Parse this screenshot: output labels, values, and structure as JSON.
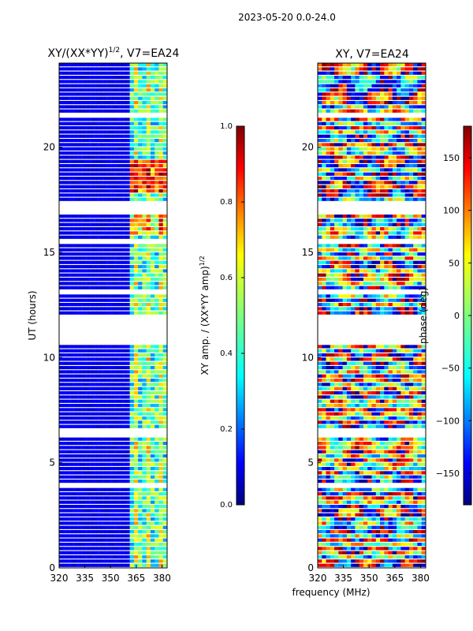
{
  "suptitle": "2023-05-20 0.0-24.0",
  "shared": {
    "xlabel": "frequency (MHz)"
  },
  "chart_data": [
    {
      "type": "heatmap",
      "title_main": "XY/(XX*YY)",
      "title_sup": "1/2",
      "title_tail": ", V7=EA24",
      "xlabel": "frequency (MHz)",
      "ylabel": "UT (hours)",
      "xlim": [
        320,
        383
      ],
      "ylim": [
        0,
        24
      ],
      "xticks": [
        320,
        335,
        350,
        365,
        380
      ],
      "yticks": [
        0,
        5,
        10,
        15,
        20
      ],
      "colorbar": {
        "label_main": "XY amp. / (XX*YY amp)",
        "label_sup": "1/2",
        "range": [
          0.0,
          1.0
        ],
        "ticks": [
          "0.0",
          "0.2",
          "0.4",
          "0.6",
          "0.8",
          "1.0"
        ]
      }
    },
    {
      "type": "heatmap",
      "title": "XY, V7=EA24",
      "xlabel": "frequency (MHz)",
      "ylabel": "",
      "xlim": [
        320,
        383
      ],
      "ylim": [
        0,
        24
      ],
      "xticks": [
        320,
        335,
        350,
        365,
        380
      ],
      "yticks": [
        0,
        5,
        10,
        15,
        20
      ],
      "colorbar": {
        "label": "phase (deg)",
        "range": [
          -180,
          180
        ],
        "ticks": [
          "150",
          "100",
          "50",
          "0",
          "−50",
          "−100",
          "−150"
        ],
        "tick_values": [
          150,
          100,
          50,
          0,
          -50,
          -100,
          -150
        ]
      }
    }
  ],
  "flagged_ut_ranges": [
    [
      10.65,
      11.9
    ],
    [
      13.05,
      13.15
    ],
    [
      16.85,
      17.35
    ],
    [
      21.35,
      21.6
    ],
    [
      3.85,
      3.95
    ],
    [
      6.3,
      6.5
    ],
    [
      15.35,
      15.5
    ]
  ]
}
